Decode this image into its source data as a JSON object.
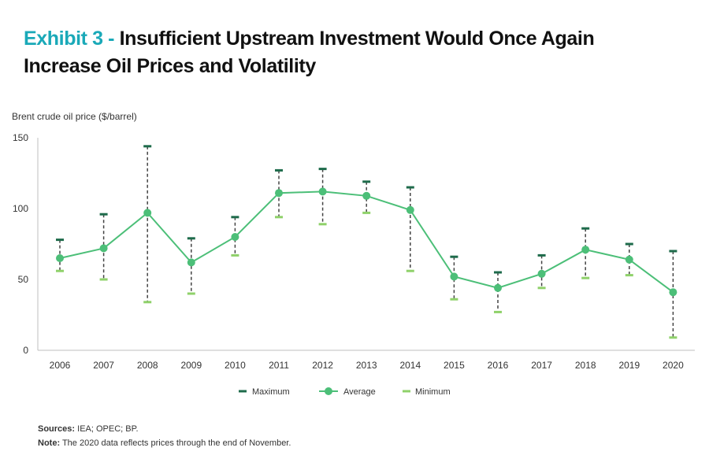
{
  "title": {
    "prefix": "Exhibit 3 - ",
    "text": "Insufficient Upstream Investment Would Once Again Increase Oil Prices and Volatility"
  },
  "chart_data": {
    "type": "line",
    "ylabel": "Brent crude oil price ($/barrel)",
    "xlabel": "",
    "ylim": [
      0,
      150
    ],
    "yticks": [
      0,
      50,
      100,
      150
    ],
    "grid": false,
    "legend_position": "bottom",
    "x": [
      "2006",
      "2007",
      "2008",
      "2009",
      "2010",
      "2011",
      "2012",
      "2013",
      "2014",
      "2015",
      "2016",
      "2017",
      "2018",
      "2019",
      "2020"
    ],
    "series": [
      {
        "name": "Maximum",
        "marker": "dash",
        "color": "#1e6b4b",
        "values": [
          78,
          96,
          144,
          79,
          94,
          127,
          128,
          119,
          115,
          66,
          55,
          67,
          86,
          75,
          70
        ]
      },
      {
        "name": "Average",
        "marker": "circle-line",
        "color": "#4cbf78",
        "values": [
          65,
          72,
          97,
          62,
          80,
          111,
          112,
          109,
          99,
          52,
          44,
          54,
          71,
          64,
          41
        ]
      },
      {
        "name": "Minimum",
        "marker": "dash",
        "color": "#8fd16a",
        "values": [
          56,
          50,
          34,
          40,
          67,
          94,
          89,
          97,
          56,
          36,
          27,
          44,
          51,
          53,
          9
        ]
      }
    ]
  },
  "sources": {
    "sources_label": "Sources:",
    "sources_text": " IEA; OPEC; BP.",
    "note_label": "Note:",
    "note_text": " The 2020 data reflects prices through the end of November."
  }
}
